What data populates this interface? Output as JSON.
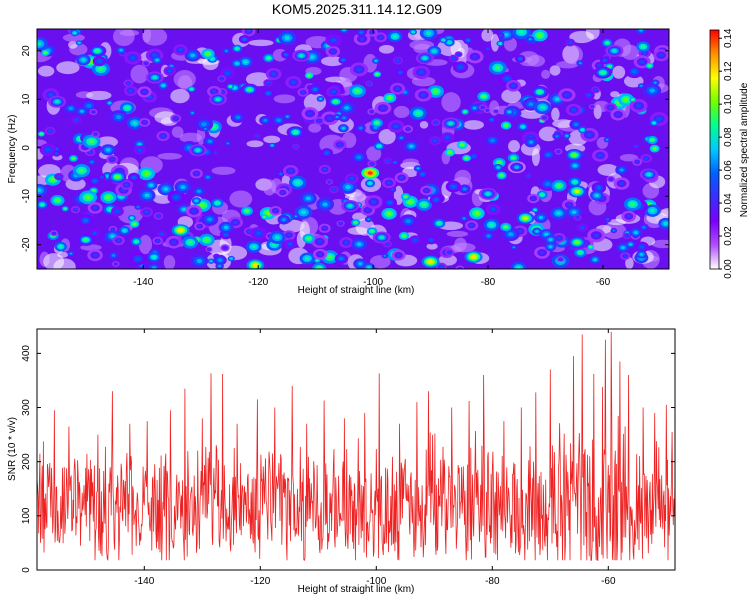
{
  "chart_data": [
    {
      "type": "heatmap",
      "title": "KOM5.2025.311.14.12.G09",
      "xlabel": "Height of straight line (km)",
      "ylabel": "Frequency (Hz)",
      "xlim": [
        -158.5,
        -48.5
      ],
      "ylim": [
        -25,
        24.5
      ],
      "xticks": [
        -140,
        -120,
        -100,
        -80,
        -60
      ],
      "yticks": [
        -20,
        -10,
        0,
        10,
        20
      ],
      "grid": false,
      "colorbar": {
        "label": "Normalized spectral amplitude",
        "range": [
          0,
          0.145
        ],
        "ticks": [
          "0.00",
          "0.02",
          "0.04",
          "0.06",
          "0.08",
          "0.10",
          "0.12",
          "0.14"
        ],
        "colormap": [
          "#ffffff",
          "#b050ff",
          "#7a00ff",
          "#3a2dff",
          "#0060ff",
          "#00c8ff",
          "#00ff90",
          "#70ff00",
          "#ffff00",
          "#ff9000",
          "#ff0000"
        ]
      },
      "peaks": [
        {
          "x": -100.5,
          "y": -5.2,
          "value": 0.14
        },
        {
          "x": -82.5,
          "y": -22.5,
          "value": 0.12
        },
        {
          "x": -133.5,
          "y": -17.0,
          "value": 0.12
        },
        {
          "x": -120.5,
          "y": -24.2,
          "value": 0.12
        },
        {
          "x": -90.0,
          "y": -23.5,
          "value": 0.12
        },
        {
          "x": -73.5,
          "y": -14.5,
          "value": 0.11
        },
        {
          "x": -64.5,
          "y": -9.0,
          "value": 0.11
        },
        {
          "x": -64.5,
          "y": -19.5,
          "value": 0.1
        },
        {
          "x": -144.5,
          "y": -6.0,
          "value": 0.1
        },
        {
          "x": -106.5,
          "y": 9.5,
          "value": 0.09
        },
        {
          "x": -113.5,
          "y": 3.2,
          "value": 0.09
        },
        {
          "x": -65.0,
          "y": -1.5,
          "value": 0.1
        },
        {
          "x": -71.0,
          "y": 11.5,
          "value": 0.09
        },
        {
          "x": -60.0,
          "y": 15.5,
          "value": 0.09
        },
        {
          "x": -127.0,
          "y": 10.0,
          "value": 0.08
        },
        {
          "x": -148.0,
          "y": 20.0,
          "value": 0.09
        },
        {
          "x": -155.0,
          "y": 9.5,
          "value": 0.08
        },
        {
          "x": -121.5,
          "y": 12.0,
          "value": 0.09
        },
        {
          "x": -112.5,
          "y": 19.0,
          "value": 0.08
        },
        {
          "x": -86.5,
          "y": 5.0,
          "value": 0.08
        },
        {
          "x": -80.0,
          "y": -9.5,
          "value": 0.08
        },
        {
          "x": -130.5,
          "y": -0.5,
          "value": 0.08
        },
        {
          "x": -150.0,
          "y": -19.0,
          "value": 0.09
        },
        {
          "x": -98.5,
          "y": -18.5,
          "value": 0.08
        },
        {
          "x": -58.0,
          "y": 20.0,
          "value": 0.08
        },
        {
          "x": -52.0,
          "y": -5.5,
          "value": 0.08
        },
        {
          "x": -91.0,
          "y": 18.5,
          "value": 0.08
        },
        {
          "x": -138.0,
          "y": 14.5,
          "value": 0.08
        },
        {
          "x": -75.0,
          "y": -4.0,
          "value": 0.07
        },
        {
          "x": -104.0,
          "y": -12.0,
          "value": 0.08
        }
      ]
    },
    {
      "type": "line",
      "xlabel": "Height of straight line (km)",
      "ylabel": "SNR (10 * v/v)",
      "xlim": [
        -158.5,
        -48.5
      ],
      "ylim": [
        0,
        445
      ],
      "xticks": [
        -140,
        -120,
        -100,
        -80,
        -60
      ],
      "yticks": [
        0,
        100,
        200,
        300,
        400
      ],
      "grid": false,
      "series": [
        {
          "color": "#ee2222",
          "step_km": 0.1,
          "x_start": -158.5,
          "baseline": 115,
          "typical_range": [
            20,
            260
          ],
          "peaks": [
            {
              "x": -158.0,
              "y": 215
            },
            {
              "x": -155.5,
              "y": 295
            },
            {
              "x": -153.0,
              "y": 265
            },
            {
              "x": -148.0,
              "y": 250
            },
            {
              "x": -145.5,
              "y": 330
            },
            {
              "x": -142.5,
              "y": 270
            },
            {
              "x": -139.5,
              "y": 275
            },
            {
              "x": -135.5,
              "y": 295
            },
            {
              "x": -133.0,
              "y": 335
            },
            {
              "x": -130.0,
              "y": 280
            },
            {
              "x": -128.5,
              "y": 363
            },
            {
              "x": -126.5,
              "y": 362
            },
            {
              "x": -124.0,
              "y": 270
            },
            {
              "x": -120.5,
              "y": 315
            },
            {
              "x": -117.5,
              "y": 300
            },
            {
              "x": -114.5,
              "y": 340
            },
            {
              "x": -112.0,
              "y": 270
            },
            {
              "x": -109.0,
              "y": 313
            },
            {
              "x": -105.5,
              "y": 280
            },
            {
              "x": -102.0,
              "y": 290
            },
            {
              "x": -99.5,
              "y": 363
            },
            {
              "x": -96.0,
              "y": 270
            },
            {
              "x": -93.0,
              "y": 310
            },
            {
              "x": -91.0,
              "y": 330
            },
            {
              "x": -87.0,
              "y": 300
            },
            {
              "x": -84.0,
              "y": 312
            },
            {
              "x": -81.5,
              "y": 360
            },
            {
              "x": -78.0,
              "y": 275
            },
            {
              "x": -75.0,
              "y": 300
            },
            {
              "x": -72.5,
              "y": 328
            },
            {
              "x": -70.0,
              "y": 370
            },
            {
              "x": -66.0,
              "y": 395
            },
            {
              "x": -64.5,
              "y": 435
            },
            {
              "x": -62.5,
              "y": 362
            },
            {
              "x": -61.0,
              "y": 338
            },
            {
              "x": -60.5,
              "y": 425
            },
            {
              "x": -59.5,
              "y": 440
            },
            {
              "x": -58.0,
              "y": 385
            },
            {
              "x": -56.5,
              "y": 360
            },
            {
              "x": -54.0,
              "y": 300
            },
            {
              "x": -52.0,
              "y": 290
            },
            {
              "x": -50.0,
              "y": 305
            },
            {
              "x": -49.0,
              "y": 255
            }
          ]
        }
      ]
    }
  ]
}
